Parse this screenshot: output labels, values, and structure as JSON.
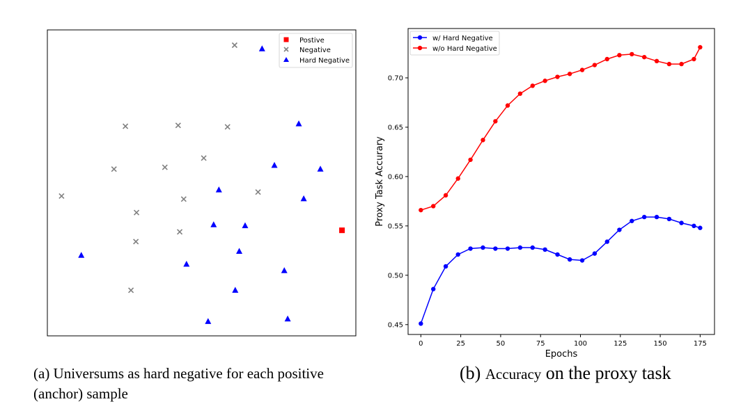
{
  "panel_a": {
    "caption": "(a) Universums as hard negative for each positive (anchor) sample",
    "caption_line1": "(a) Universums as hard negative for each positive",
    "caption_line2": "(anchor) sample",
    "legend": {
      "positive": "Postive",
      "negative": "Negative",
      "hard_negative": "Hard Negative"
    },
    "colors": {
      "positive": "#ff0000",
      "negative": "#808080",
      "hard_negative": "#0000ff"
    }
  },
  "panel_b": {
    "caption": "(b) Accuracy on the proxy task",
    "caption_prefix": "(b) ",
    "caption_small": "Accuracy",
    "caption_rest": " on the proxy task"
  },
  "chart_data": [
    {
      "type": "scatter",
      "title": "",
      "xlabel": "",
      "ylabel": "",
      "xlim": [
        0,
        100
      ],
      "ylim": [
        0,
        100
      ],
      "ticks": "none",
      "grid": false,
      "legend_position": "top-right",
      "series": [
        {
          "name": "Postive",
          "marker": "square",
          "color": "#ff0000",
          "points": [
            [
              95.5,
              34.5
            ]
          ]
        },
        {
          "name": "Negative",
          "marker": "x",
          "color": "#808080",
          "points": [
            [
              60.7,
              95.0
            ],
            [
              25.3,
              68.5
            ],
            [
              42.4,
              68.8
            ],
            [
              58.4,
              68.3
            ],
            [
              21.6,
              54.5
            ],
            [
              38.1,
              55.1
            ],
            [
              50.7,
              58.1
            ],
            [
              4.6,
              45.7
            ],
            [
              44.2,
              44.7
            ],
            [
              68.3,
              47.0
            ],
            [
              28.9,
              40.3
            ],
            [
              42.9,
              34.0
            ],
            [
              28.7,
              30.8
            ],
            [
              27.1,
              14.9
            ]
          ]
        },
        {
          "name": "Hard Negative",
          "marker": "triangle",
          "color": "#0000ff",
          "points": [
            [
              69.6,
              93.8
            ],
            [
              81.5,
              69.3
            ],
            [
              73.6,
              55.7
            ],
            [
              88.5,
              54.5
            ],
            [
              55.6,
              47.7
            ],
            [
              83.1,
              44.8
            ],
            [
              53.9,
              36.3
            ],
            [
              64.1,
              36.0
            ],
            [
              62.2,
              27.6
            ],
            [
              11.0,
              26.3
            ],
            [
              45.1,
              23.4
            ],
            [
              76.8,
              21.3
            ],
            [
              60.9,
              14.9
            ],
            [
              52.1,
              4.7
            ],
            [
              77.9,
              5.5
            ]
          ]
        }
      ]
    },
    {
      "type": "line",
      "title": "",
      "xlabel": "Epochs",
      "ylabel": "Proxy Task Accurary",
      "xlim": [
        -8,
        184
      ],
      "ylim": [
        0.44,
        0.75
      ],
      "xticks": [
        0,
        25,
        50,
        75,
        100,
        125,
        150,
        175
      ],
      "yticks": [
        0.45,
        0.5,
        0.55,
        0.6,
        0.65,
        0.7
      ],
      "ytick_labels": [
        "0.45",
        "0.50",
        "0.55",
        "0.60",
        "0.65",
        "0.70"
      ],
      "grid": false,
      "legend_position": "top-left",
      "x": [
        0,
        7.8,
        15.6,
        23.3,
        31.1,
        38.9,
        46.7,
        54.4,
        62.2,
        70.0,
        77.8,
        85.6,
        93.3,
        101.1,
        108.9,
        116.7,
        124.4,
        132.2,
        140.0,
        147.8,
        155.6,
        163.3,
        171.1,
        175
      ],
      "series": [
        {
          "name": "w/ Hard Negative",
          "color": "#0000ff",
          "values": [
            0.451,
            0.486,
            0.509,
            0.521,
            0.527,
            0.528,
            0.527,
            0.527,
            0.528,
            0.528,
            0.526,
            0.521,
            0.516,
            0.515,
            0.522,
            0.534,
            0.546,
            0.555,
            0.559,
            0.559,
            0.557,
            0.553,
            0.55,
            0.548
          ]
        },
        {
          "name": "w/o Hard Negative",
          "color": "#ff0000",
          "values": [
            0.566,
            0.57,
            0.581,
            0.598,
            0.617,
            0.637,
            0.656,
            0.672,
            0.684,
            0.692,
            0.697,
            0.701,
            0.704,
            0.708,
            0.713,
            0.719,
            0.723,
            0.724,
            0.721,
            0.717,
            0.714,
            0.714,
            0.719,
            0.731
          ]
        }
      ]
    }
  ]
}
